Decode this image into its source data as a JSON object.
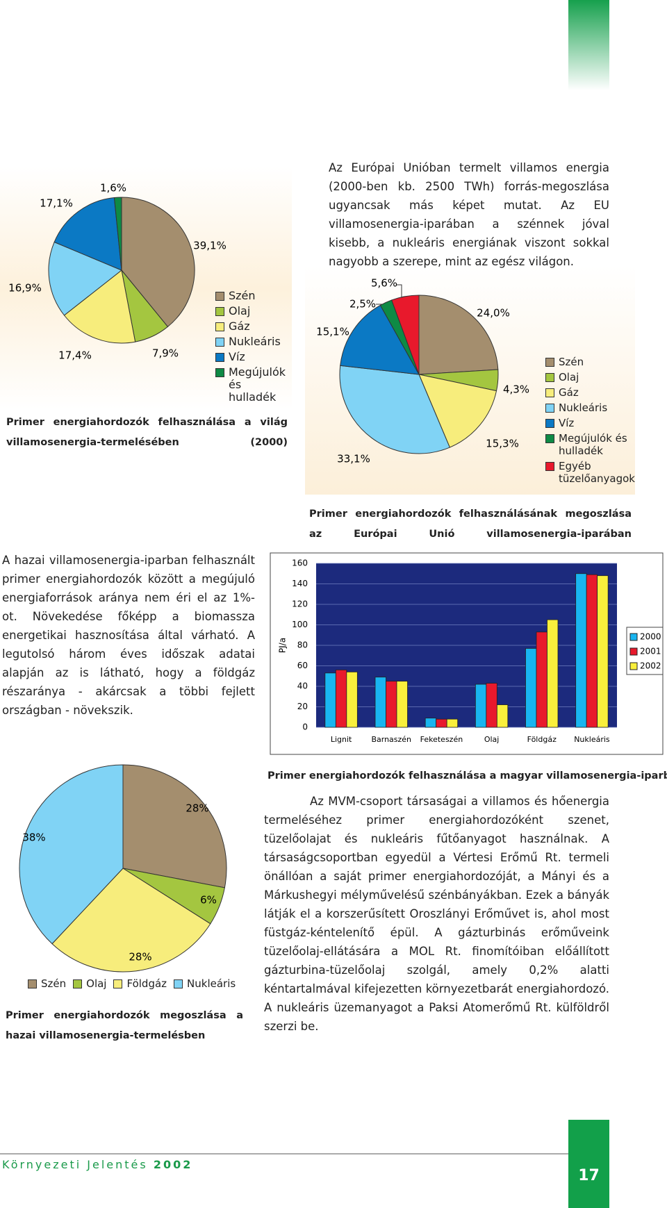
{
  "paragraphs": [
    "Az Európai Unióban termelt villamos energia (2000-ben kb. 2500 TWh) forrás-megoszlása ugyancsak más képet mutat. Az EU villamosenergia-iparában a szénnek jóval kisebb, a nukleáris energiának viszont sokkal nagyobb a szerepe, mint az egész világon.",
    "A hazai villamosenergia-iparban felhasznált primer energiahordozók között a megújuló energiaforrások aránya nem éri el az 1%-ot. Növekedése főképp a biomassza energetikai hasznosítása által várható. A legutolsó három éves időszak adatai alapján az is látható, hogy a földgáz részaránya - akárcsak a többi fejlett országban - növekszik.",
    "Az MVM-csoport társaságai a villamos és hőenergia termeléséhez primer energiahordozóként szenet, tüzelőolajat és nukleáris fűtőanyagot használnak. A társaságcsoportban egyedül a Vértesi Erőmű Rt. termeli önállóan a saját primer energiahordozóját, a Mányi és a Márkushegyi mélyművelésű szénbányákban. Ezek a bányák látják el a korszerűsített Oroszlányi Erőművet is, ahol most füstgáz-kéntelenítő épül. A gázturbinás erőműveink tüzelőolaj-ellátására a MOL Rt. finomítóiban előállított gázturbina-tüzelőolaj szolgál, amely 0,2% alatti kéntartalmával kifejezetten környezetbarát energiahordozó. A nukleáris üzemanyagot a Paksi Atomerőmű Rt. külföldről szerzi be."
  ],
  "footer": {
    "title": "Környezeti Jelentés",
    "year": "2002",
    "page_number": "17"
  },
  "chart_data": [
    {
      "type": "pie",
      "title": "Primer energiahordozók felhasználása a világ villamosenergia-termelésében (2000)",
      "categories": [
        "Szén",
        "Olaj",
        "Gáz",
        "Nukleáris",
        "Víz",
        "Megújulók és hulladék"
      ],
      "values": [
        39.1,
        7.9,
        17.4,
        16.9,
        17.1,
        1.6
      ],
      "value_labels": [
        "39,1%",
        "7,9%",
        "17,4%",
        "16,9%",
        "17,1%",
        "1,6%"
      ],
      "colors": [
        "#a48e6e",
        "#a4c640",
        "#f7ed7c",
        "#80d3f5",
        "#0b79c4",
        "#0e8a45"
      ]
    },
    {
      "type": "pie",
      "title": "Primer energiahordozók felhasználásának megoszlása az Európai Unió villamosenergia-iparában",
      "categories": [
        "Szén",
        "Olaj",
        "Gáz",
        "Nukleáris",
        "Víz",
        "Megújulók és hulladék",
        "Egyéb tüzelőanyagok"
      ],
      "values": [
        24.0,
        4.3,
        15.3,
        33.1,
        15.1,
        2.5,
        5.6
      ],
      "value_labels": [
        "24,0%",
        "4,3%",
        "15,3%",
        "33,1%",
        "15,1%",
        "2,5%",
        "5,6%"
      ],
      "colors": [
        "#a48e6e",
        "#a4c640",
        "#f7ed7c",
        "#80d3f5",
        "#0b79c4",
        "#0e8a45",
        "#e8192c"
      ]
    },
    {
      "type": "bar",
      "title": "Primer energiahordozók felhasználása a magyar villamosenergia-iparban",
      "y_label": "PJ/a",
      "categories": [
        "Lignit",
        "Barnaszén",
        "Feketeszén",
        "Olaj",
        "Földgáz",
        "Nukleáris"
      ],
      "series": [
        {
          "name": "2000",
          "color": "#19b5f0",
          "values": [
            53,
            49,
            9,
            42,
            77,
            150
          ]
        },
        {
          "name": "2001",
          "color": "#e8192c",
          "values": [
            56,
            45,
            8,
            43,
            93,
            149
          ]
        },
        {
          "name": "2002",
          "color": "#f9ef3c",
          "values": [
            54,
            45,
            8,
            22,
            105,
            148
          ]
        }
      ],
      "ylim": [
        0,
        160
      ],
      "yticks": [
        0,
        20,
        40,
        60,
        80,
        100,
        120,
        140,
        160
      ],
      "grid": true
    },
    {
      "type": "pie",
      "title": "Primer energiahordozók megoszlása a hazai villamosenergia-termelésben",
      "categories": [
        "Szén",
        "Olaj",
        "Földgáz",
        "Nukleáris"
      ],
      "values": [
        28,
        6,
        28,
        38
      ],
      "value_labels": [
        "28%",
        "6%",
        "28%",
        "38%"
      ],
      "colors": [
        "#a48e6e",
        "#a4c640",
        "#f7ed7c",
        "#80d3f5"
      ]
    }
  ]
}
